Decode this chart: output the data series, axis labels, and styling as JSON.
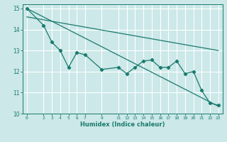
{
  "xlabel": "Humidex (Indice chaleur)",
  "bg_color": "#cce8e8",
  "grid_color": "#ffffff",
  "line_color": "#1a7a6e",
  "xlim": [
    -0.5,
    23.5
  ],
  "ylim": [
    10,
    15.2
  ],
  "x_ticks": [
    0,
    2,
    3,
    4,
    5,
    6,
    7,
    9,
    11,
    12,
    13,
    14,
    15,
    16,
    17,
    18,
    19,
    20,
    21,
    22,
    23
  ],
  "y_ticks": [
    10,
    11,
    12,
    13,
    14,
    15
  ],
  "series1_x": [
    0,
    2,
    3,
    4,
    5,
    6,
    7,
    9,
    11,
    12,
    13,
    14,
    15,
    16,
    17,
    18,
    19,
    20,
    21,
    22,
    23
  ],
  "series1_y": [
    15.0,
    14.2,
    13.4,
    13.0,
    12.2,
    12.9,
    12.8,
    12.1,
    12.2,
    11.9,
    12.2,
    12.5,
    12.55,
    12.2,
    12.2,
    12.5,
    11.9,
    12.0,
    11.1,
    10.5,
    10.4
  ],
  "series2_x": [
    0,
    23
  ],
  "series2_y": [
    15.0,
    10.35
  ],
  "series3_x": [
    0,
    23
  ],
  "series3_y": [
    14.6,
    13.0
  ]
}
